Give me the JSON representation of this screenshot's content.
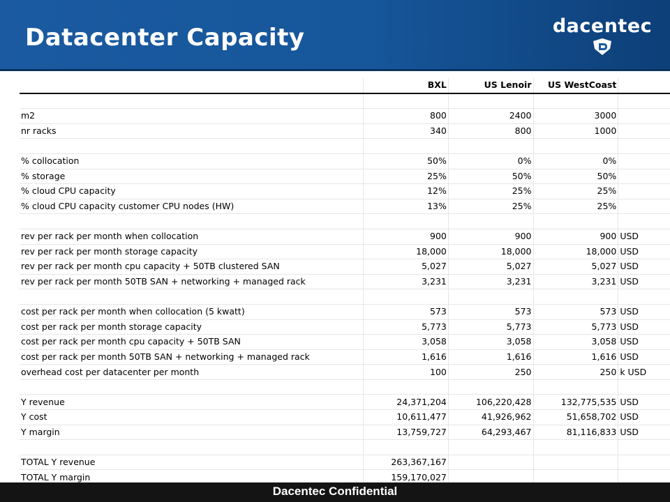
{
  "slide": {
    "title": "Datacenter Capacity",
    "logo_text": "dacentec",
    "logo_icon": "shield-d-icon",
    "footer": "Dacentec Confidential"
  },
  "colors": {
    "header_blue": "#1b5aa0",
    "footer_bg": "#141414"
  },
  "table": {
    "headers": [
      "",
      "BXL",
      "US Lenoir",
      "US WestCoast",
      ""
    ],
    "rows": [
      [
        "",
        "",
        "",
        "",
        ""
      ],
      [
        "m2",
        "800",
        "2400",
        "3000",
        ""
      ],
      [
        "nr racks",
        "340",
        "800",
        "1000",
        ""
      ],
      [
        "",
        "",
        "",
        "",
        ""
      ],
      [
        "% collocation",
        "50%",
        "0%",
        "0%",
        ""
      ],
      [
        "% storage",
        "25%",
        "50%",
        "50%",
        ""
      ],
      [
        "% cloud CPU capacity",
        "12%",
        "25%",
        "25%",
        ""
      ],
      [
        "% cloud CPU capacity customer CPU nodes (HW)",
        "13%",
        "25%",
        "25%",
        ""
      ],
      [
        "",
        "",
        "",
        "",
        ""
      ],
      [
        "rev per rack per month when collocation",
        "900",
        "900",
        "900",
        "USD"
      ],
      [
        "rev per rack per month storage capacity",
        "18,000",
        "18,000",
        "18,000",
        "USD"
      ],
      [
        "rev per rack per month cpu capacity + 50TB clustered SAN",
        "5,027",
        "5,027",
        "5,027",
        "USD"
      ],
      [
        "rev per rack per month 50TB SAN + networking + managed rack",
        "3,231",
        "3,231",
        "3,231",
        "USD"
      ],
      [
        "",
        "",
        "",
        "",
        ""
      ],
      [
        "cost per rack per month when collocation (5 kwatt)",
        "573",
        "573",
        "573",
        "USD"
      ],
      [
        "cost per rack per month storage capacity",
        "5,773",
        "5,773",
        "5,773",
        "USD"
      ],
      [
        "cost per rack per month cpu capacity + 50TB SAN",
        "3,058",
        "3,058",
        "3,058",
        "USD"
      ],
      [
        "cost per rack per month 50TB SAN + networking + managed rack",
        "1,616",
        "1,616",
        "1,616",
        "USD"
      ],
      [
        "overhead cost per datacenter per month",
        "100",
        "250",
        "250",
        "k USD"
      ],
      [
        "",
        "",
        "",
        "",
        ""
      ],
      [
        "Y revenue",
        "24,371,204",
        "106,220,428",
        "132,775,535",
        "USD"
      ],
      [
        "Y cost",
        "10,611,477",
        "41,926,962",
        "51,658,702",
        "USD"
      ],
      [
        "Y margin",
        "13,759,727",
        "64,293,467",
        "81,116,833",
        "USD"
      ],
      [
        "",
        "",
        "",
        "",
        ""
      ],
      [
        "TOTAL Y revenue",
        "263,367,167",
        "",
        "",
        ""
      ],
      [
        "TOTAL Y margin",
        "159,170,027",
        "",
        "",
        ""
      ]
    ]
  }
}
